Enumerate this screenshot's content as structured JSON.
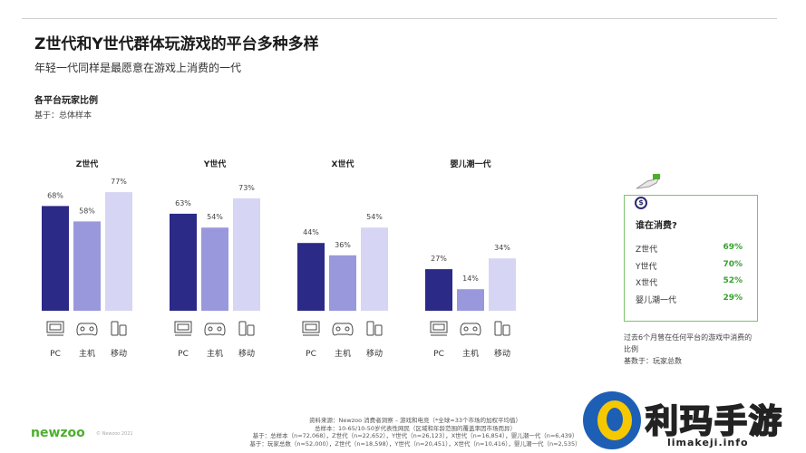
{
  "header": {
    "title": "Z世代和Y世代群体玩游戏的平台多种多样",
    "subtitle": "年轻一代同样是最愿意在游戏上消费的一代",
    "section_title": "各平台玩家比例",
    "base_note": "基于：总体样本"
  },
  "colors": {
    "pc": "#2b2a87",
    "console": "#9a98dc",
    "mobile": "#d6d5f3",
    "accent_green": "#3aa12f"
  },
  "chart_data": {
    "type": "bar",
    "categories": [
      "PC",
      "主机",
      "移动"
    ],
    "ylim": [
      0,
      100
    ],
    "groups": [
      {
        "name": "Z世代",
        "values": [
          68,
          58,
          77
        ],
        "labels": [
          "68%",
          "58%",
          "77%"
        ]
      },
      {
        "name": "Y世代",
        "values": [
          63,
          54,
          73
        ],
        "labels": [
          "63%",
          "54%",
          "73%"
        ]
      },
      {
        "name": "X世代",
        "values": [
          44,
          36,
          54
        ],
        "labels": [
          "44%",
          "36%",
          "54%"
        ]
      },
      {
        "name": "婴儿潮一代",
        "values": [
          27,
          14,
          34
        ],
        "labels": [
          "27%",
          "14%",
          "34%"
        ]
      }
    ],
    "icons": [
      "pc-icon",
      "gamepad-icon",
      "mobile-icon"
    ]
  },
  "spend": {
    "coin_symbol": "$",
    "title": "谁在消费?",
    "rows": [
      {
        "label": "Z世代",
        "value": "69%"
      },
      {
        "label": "Y世代",
        "value": "70%"
      },
      {
        "label": "X世代",
        "value": "52%"
      },
      {
        "label": "婴儿潮一代",
        "value": "29%"
      }
    ],
    "note_line1": "过去6个月曾在任何平台的游戏中消费的",
    "note_line2": "比例",
    "note_line3": "基数于：玩家总数"
  },
  "footer": {
    "logo": "newzoo",
    "copyright": "© Newzoo 2021",
    "source_line1": "资料来源：Newzoo 消费者洞察 – 游戏和电竞（*全球=33个市场的加权平均值）",
    "source_line2": "总样本：10-65/10-50岁代表性网民（区域和年龄范围的覆盖率因市场而异）",
    "source_line3": "基于：总样本（n=72,068），Z世代（n=22,652），Y世代（n=26,123），X世代（n=16,854），婴儿潮一代（n=6,439）",
    "source_line4": "基于：玩家总数（n=52,000），Z世代（n=18,598），Y世代（n=20,451），X世代（n=10,416），婴儿潮一代（n=2,535）"
  },
  "watermark": {
    "text": "利玛手游",
    "url": "limakeji.info"
  }
}
